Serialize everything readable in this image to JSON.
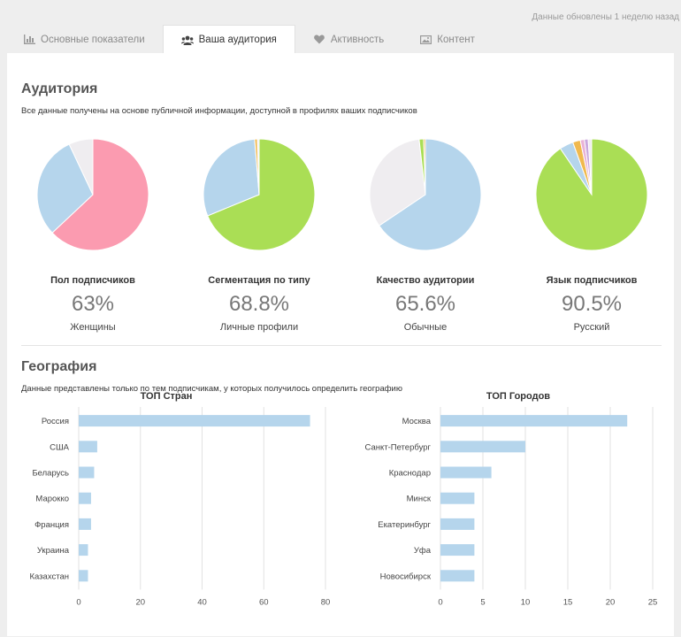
{
  "updated_text": "Данные обновлены 1 неделю назад",
  "tabs": [
    {
      "label": "Основные показатели",
      "icon": "bar-chart-icon"
    },
    {
      "label": "Ваша аудитория",
      "icon": "users-icon"
    },
    {
      "label": "Активность",
      "icon": "heart-icon"
    },
    {
      "label": "Контент",
      "icon": "image-icon"
    }
  ],
  "audience": {
    "title": "Аудитория",
    "subtitle": "Все данные получены на основе публичной информации, доступной в профилях ваших подписчиков"
  },
  "geography": {
    "title": "География",
    "subtitle": "Данные представлены только по тем подписчикам, у которых получилось определить географию"
  },
  "pies": [
    {
      "label": "Пол подписчиков",
      "value": "63%",
      "caption": "Женщины",
      "slices": [
        {
          "value": 63,
          "color": "#fb9bb0"
        },
        {
          "value": 30,
          "color": "#b5d5ec"
        },
        {
          "value": 7,
          "color": "#efedf0"
        }
      ]
    },
    {
      "label": "Сегментация по типу",
      "value": "68.8%",
      "caption": "Личные профили",
      "slices": [
        {
          "value": 68.8,
          "color": "#aade55"
        },
        {
          "value": 29.9,
          "color": "#b5d5ec"
        },
        {
          "value": 0.8,
          "color": "#f0b94e"
        },
        {
          "value": 0.5,
          "color": "#efedf0"
        }
      ]
    },
    {
      "label": "Качество аудитории",
      "value": "65.6%",
      "caption": "Обычные",
      "slices": [
        {
          "value": 65.6,
          "color": "#b5d5ec"
        },
        {
          "value": 32.6,
          "color": "#efedf0"
        },
        {
          "value": 1.3,
          "color": "#aade55"
        },
        {
          "value": 0.5,
          "color": "#f0b94e"
        }
      ]
    },
    {
      "label": "Язык подписчиков",
      "value": "90.5%",
      "caption": "Русский",
      "slices": [
        {
          "value": 90.5,
          "color": "#aade55"
        },
        {
          "value": 4.0,
          "color": "#b5d5ec"
        },
        {
          "value": 2.2,
          "color": "#f0b94e"
        },
        {
          "value": 1.2,
          "color": "#e9b3d6"
        },
        {
          "value": 1.1,
          "color": "#c9a7de"
        },
        {
          "value": 1.0,
          "color": "#efedf0"
        }
      ]
    }
  ],
  "chart_data": [
    {
      "type": "bar",
      "orientation": "horizontal",
      "title": "ТОП Стран",
      "categories": [
        "Россия",
        "США",
        "Беларусь",
        "Марокко",
        "Франция",
        "Украина",
        "Казахстан"
      ],
      "values": [
        75,
        6,
        5,
        4,
        4,
        3,
        3
      ],
      "xlim": [
        0,
        80
      ],
      "ticks": [
        0,
        20,
        40,
        60,
        80
      ],
      "color": "#b5d5ec",
      "grid": true
    },
    {
      "type": "bar",
      "orientation": "horizontal",
      "title": "ТОП Городов",
      "categories": [
        "Москва",
        "Санкт-Петербург",
        "Краснодар",
        "Минск",
        "Екатеринбург",
        "Уфа",
        "Новосибирск"
      ],
      "values": [
        22,
        10,
        6,
        4,
        4,
        4,
        4
      ],
      "xlim": [
        0,
        25
      ],
      "ticks": [
        0,
        5,
        10,
        15,
        20,
        25
      ],
      "color": "#b5d5ec",
      "grid": true
    }
  ]
}
